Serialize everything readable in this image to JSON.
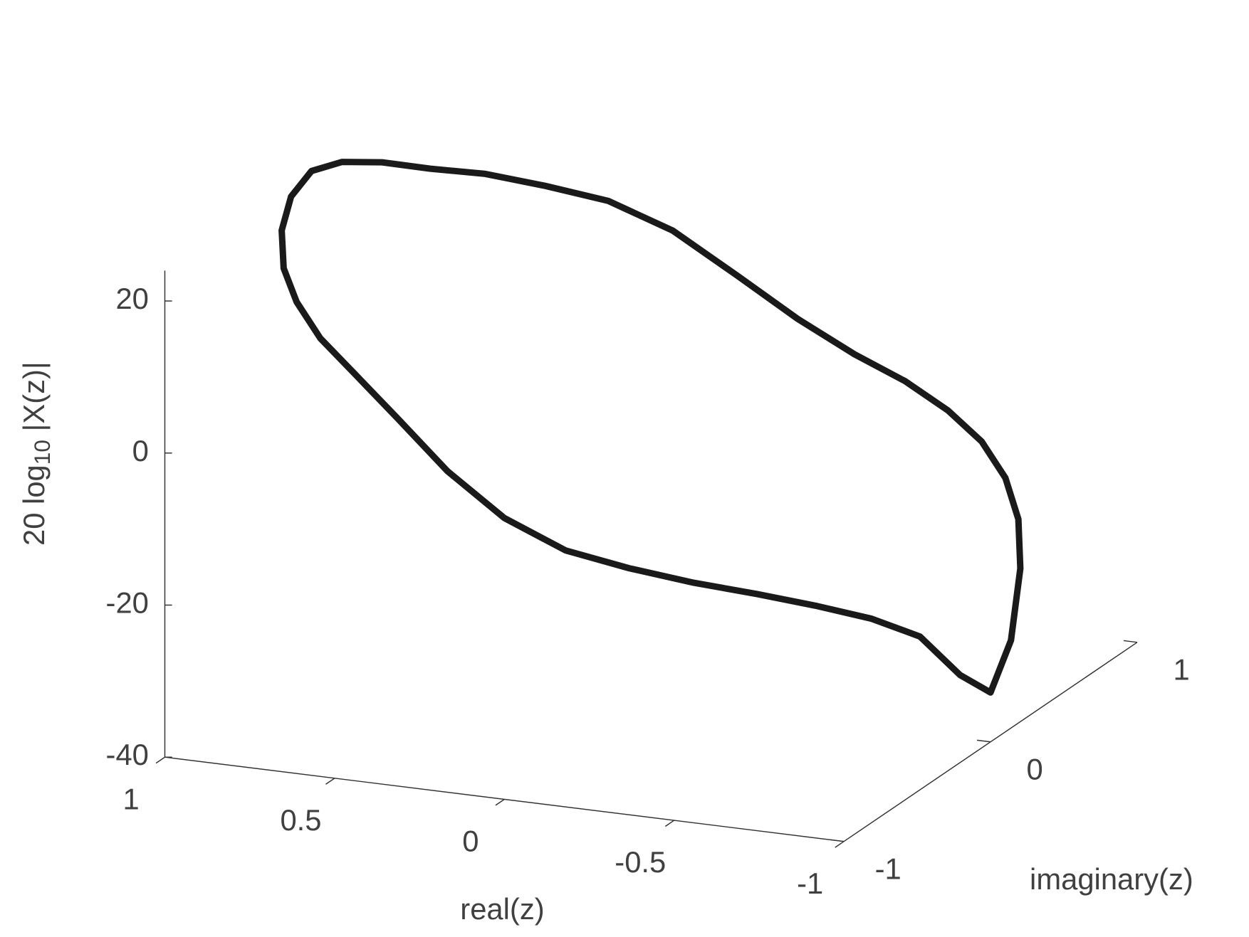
{
  "chart_data": {
    "type": "line3d",
    "xlabel": "real(z)",
    "ylabel": "imaginary(z)",
    "zlabel": [
      "20 log",
      "10",
      " |X(z)|"
    ],
    "xlim": [
      -1,
      1
    ],
    "ylim": [
      -1,
      1
    ],
    "zlim": [
      -40,
      24
    ],
    "xticks": [
      1,
      0.5,
      0,
      -0.5,
      -1
    ],
    "yticks": [
      -1,
      0,
      1
    ],
    "zticks": [
      -40,
      -20,
      0,
      20
    ],
    "series": [
      {
        "color": "#1a1a1a",
        "x": [
          1,
          0.985,
          0.94,
          0.866,
          0.766,
          0.643,
          0.5,
          0.342,
          0.174,
          0,
          -0.174,
          -0.342,
          -0.5,
          -0.643,
          -0.766,
          -0.866,
          -0.94,
          -0.985,
          -1,
          -0.985,
          -0.94,
          -0.866,
          -0.766,
          -0.643,
          -0.5,
          -0.342,
          -0.174,
          0,
          0.174,
          0.342,
          0.5,
          0.643,
          0.766,
          0.866,
          0.94,
          0.985,
          1
        ],
        "y": [
          0,
          0.174,
          0.342,
          0.5,
          0.643,
          0.766,
          0.866,
          0.94,
          0.985,
          1,
          0.985,
          0.94,
          0.866,
          0.766,
          0.643,
          0.5,
          0.342,
          0.174,
          0,
          -0.174,
          -0.342,
          -0.5,
          -0.643,
          -0.766,
          -0.866,
          -0.94,
          -0.985,
          -1,
          -0.985,
          -0.94,
          -0.866,
          -0.766,
          -0.643,
          -0.5,
          -0.342,
          -0.174,
          0
        ],
        "z": [
          24,
          23,
          21,
          18.5,
          16.5,
          14,
          11.5,
          7.5,
          2,
          -3,
          -6.5,
          -8.5,
          -10.5,
          -12.5,
          -15,
          -18,
          -22,
          -29,
          -33.5,
          -29,
          -22,
          -18,
          -15,
          -12.5,
          -10.5,
          -8.5,
          -6.5,
          -3,
          2,
          7.5,
          11.5,
          14,
          16.5,
          18.5,
          21,
          23,
          24
        ]
      }
    ]
  }
}
